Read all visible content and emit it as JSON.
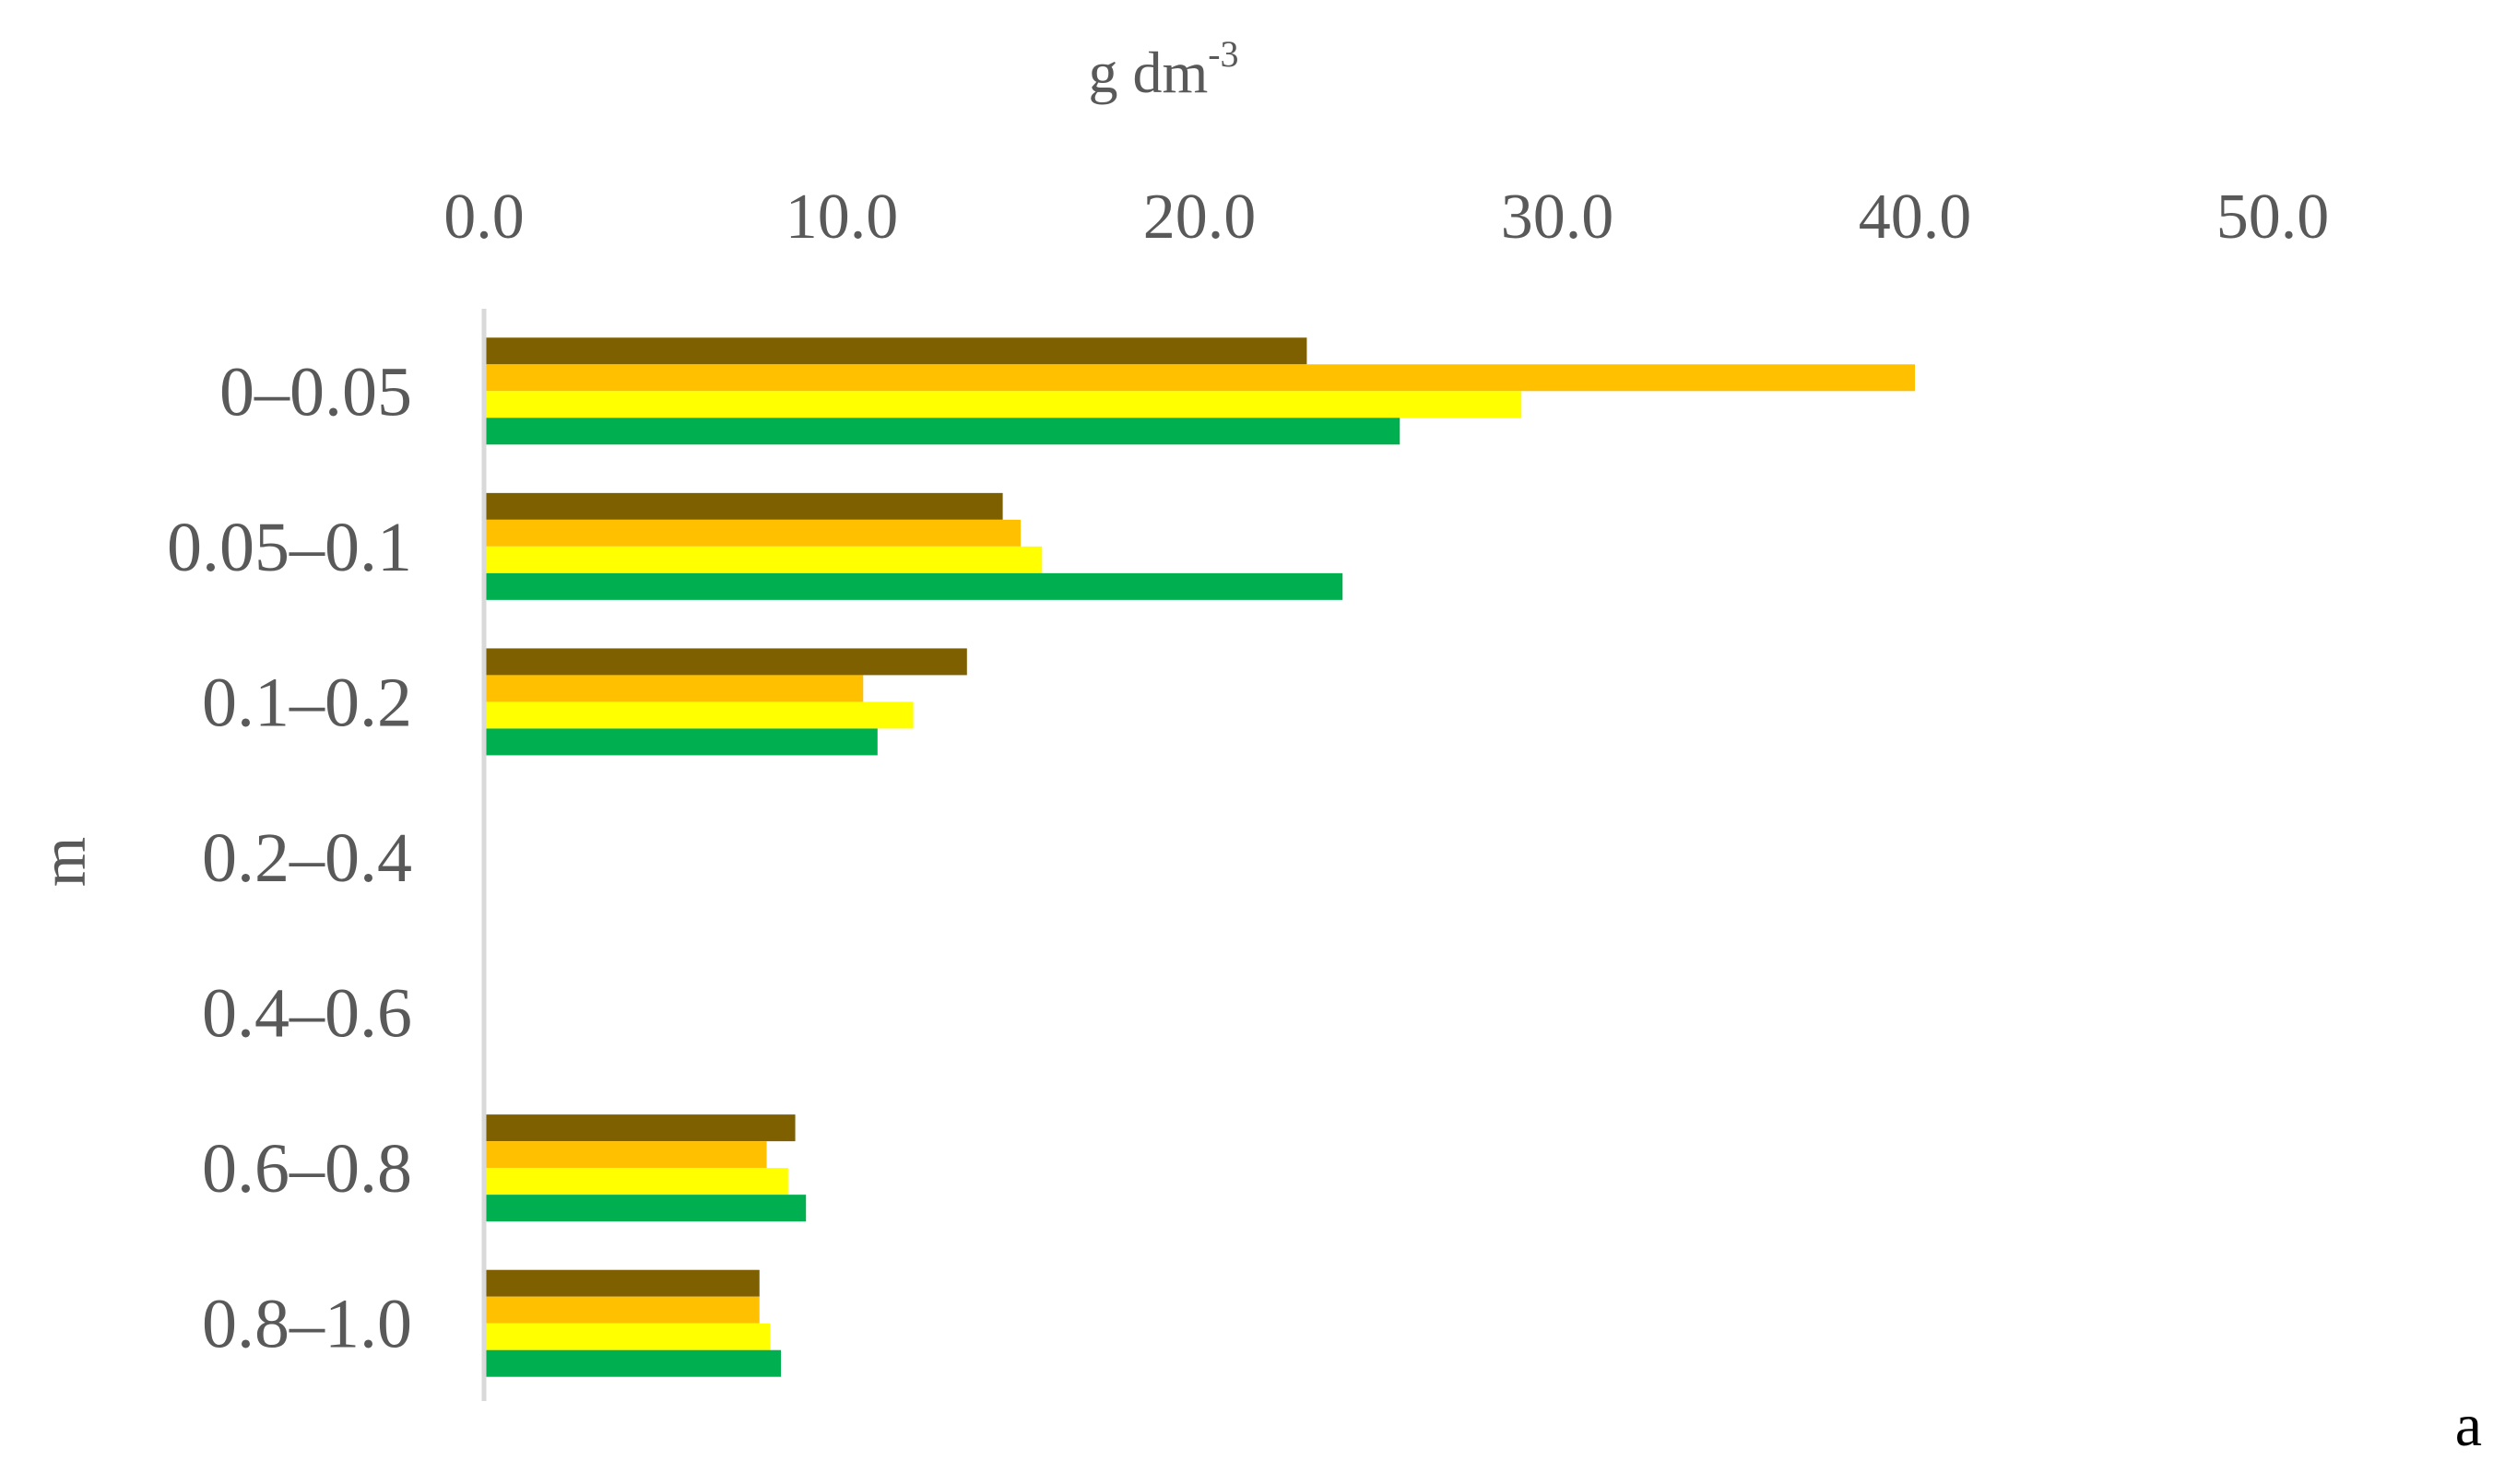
{
  "chart_data": {
    "type": "bar",
    "orientation": "horizontal",
    "xlabel": {
      "base": "g dm",
      "sup": "-3"
    },
    "ylabel": "m",
    "panel_label": "a",
    "xlim": [
      0,
      50
    ],
    "x_ticks": [
      "0.0",
      "10.0",
      "20.0",
      "30.0",
      "40.0",
      "50.0"
    ],
    "x_axis_position": "top",
    "grid": false,
    "legend": "none",
    "categories": [
      "0–0.05",
      "0.05–0.1",
      "0.1–0.2",
      "0.2–0.4",
      "0.4–0.6",
      "0.6–0.8",
      "0.8–1.0"
    ],
    "series": [
      {
        "color": "#7f6000",
        "values": [
          23.0,
          14.5,
          13.5,
          null,
          null,
          8.7,
          7.7
        ]
      },
      {
        "color": "#ffc000",
        "values": [
          40.0,
          15.0,
          10.6,
          null,
          null,
          7.9,
          7.7
        ]
      },
      {
        "color": "#ffff00",
        "values": [
          29.0,
          15.6,
          12.0,
          null,
          null,
          8.5,
          8.0
        ]
      },
      {
        "color": "#00b050",
        "values": [
          25.6,
          24.0,
          11.0,
          null,
          null,
          9.0,
          8.3
        ]
      }
    ],
    "axis_line_color": "#d9d9d9"
  }
}
